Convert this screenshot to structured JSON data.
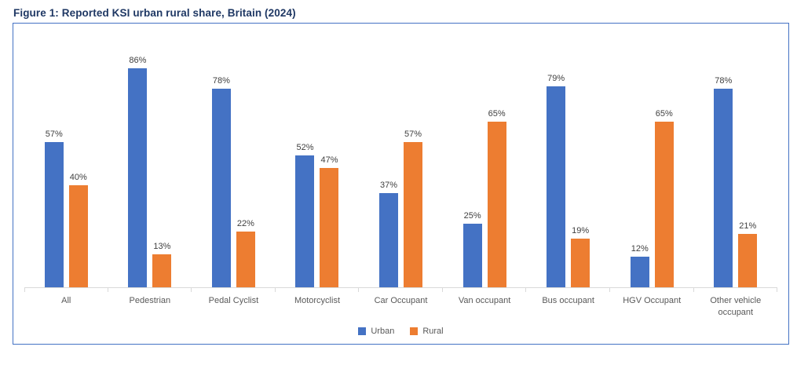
{
  "page": {
    "title": "Figure 1: Reported KSI urban rural share, Britain (2024)"
  },
  "colors": {
    "urban": "#4472C4",
    "rural": "#ED7D31",
    "box_border": "#4472C4",
    "title_text": "#1F3864",
    "axis_line": "#D9D9D9",
    "data_label_text": "#404040",
    "category_text": "#595959"
  },
  "legend": {
    "items": [
      {
        "label": "Urban",
        "color": "#4472C4"
      },
      {
        "label": "Rural",
        "color": "#ED7D31"
      }
    ]
  },
  "chart_data": {
    "type": "bar",
    "title": "Figure 1: Reported KSI urban rural share, Britain (2024)",
    "categories": [
      "All",
      "Pedestrian",
      "Pedal Cyclist",
      "Motorcyclist",
      "Car Occupant",
      "Van occupant",
      "Bus occupant",
      "HGV Occupant",
      "Other vehicle occupant"
    ],
    "series": [
      {
        "name": "Urban",
        "color": "#4472C4",
        "values": [
          57,
          86,
          78,
          52,
          37,
          25,
          79,
          12,
          78
        ]
      },
      {
        "name": "Rural",
        "color": "#ED7D31",
        "values": [
          40,
          13,
          22,
          47,
          57,
          65,
          19,
          65,
          21
        ]
      }
    ],
    "value_suffix": "%",
    "data_labels": true,
    "ylim": [
      0,
      100
    ],
    "grid": false,
    "legend_position": "bottom"
  }
}
